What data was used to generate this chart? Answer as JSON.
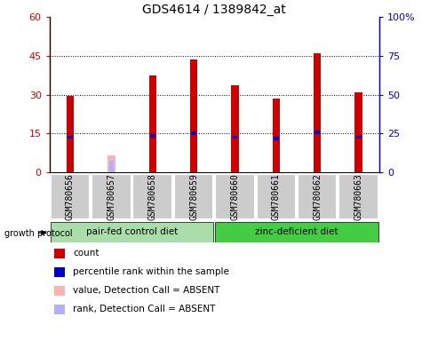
{
  "title": "GDS4614 / 1389842_at",
  "samples": [
    "GSM780656",
    "GSM780657",
    "GSM780658",
    "GSM780659",
    "GSM780660",
    "GSM780661",
    "GSM780662",
    "GSM780663"
  ],
  "count_values": [
    29.5,
    0,
    37.5,
    43.5,
    33.5,
    28.5,
    46.0,
    31.0
  ],
  "rank_values": [
    13.5,
    0,
    14.0,
    15.0,
    13.5,
    13.0,
    15.5,
    13.5
  ],
  "absent_value": [
    0,
    6.5,
    0,
    0,
    0,
    0,
    0,
    0
  ],
  "absent_rank": [
    0,
    4.5,
    0,
    0,
    0,
    0,
    0,
    0
  ],
  "detection_absent": [
    false,
    true,
    false,
    false,
    false,
    false,
    false,
    false
  ],
  "ylim_left": [
    0,
    60
  ],
  "ylim_right": [
    0,
    100
  ],
  "yticks_left": [
    0,
    15,
    30,
    45,
    60
  ],
  "yticks_right": [
    0,
    25,
    50,
    75,
    100
  ],
  "ytick_labels_left": [
    "0",
    "15",
    "30",
    "45",
    "60"
  ],
  "ytick_labels_right": [
    "0",
    "25",
    "50",
    "75",
    "100%"
  ],
  "group1_label": "pair-fed control diet",
  "group2_label": "zinc-deficient diet",
  "group1_indices": [
    0,
    1,
    2,
    3
  ],
  "group2_indices": [
    4,
    5,
    6,
    7
  ],
  "protocol_label": "growth protocol",
  "legend_items": [
    {
      "label": "count",
      "color": "#cc0000"
    },
    {
      "label": "percentile rank within the sample",
      "color": "#0000cc"
    },
    {
      "label": "value, Detection Call = ABSENT",
      "color": "#ffb0b0"
    },
    {
      "label": "rank, Detection Call = ABSENT",
      "color": "#b0b0ff"
    }
  ],
  "bar_color_red": "#cc0000",
  "bar_color_blue": "#0000cc",
  "bar_color_pink": "#ffb0b0",
  "bar_color_lightblue": "#b0b0ff",
  "group1_bg": "#aaddaa",
  "group2_bg": "#44cc44",
  "sample_box_bg": "#cccccc",
  "title_fontsize": 10,
  "tick_fontsize": 8,
  "label_fontsize": 8
}
